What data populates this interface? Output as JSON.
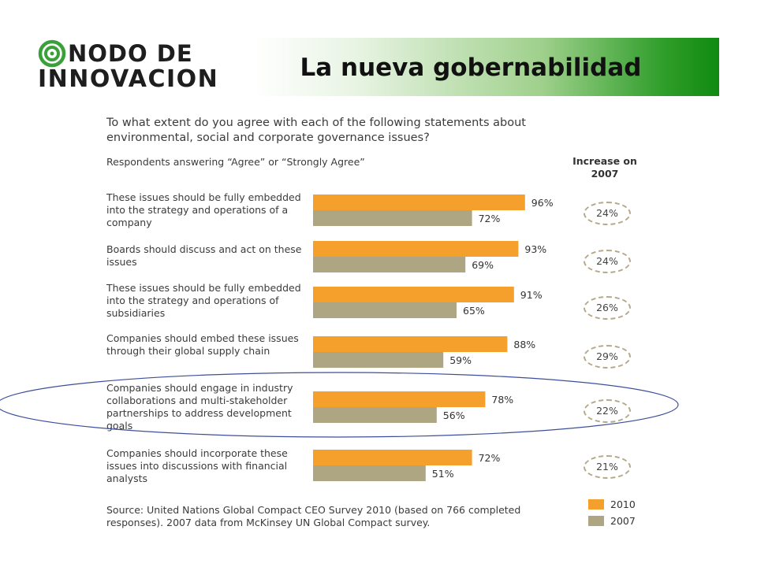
{
  "logo": {
    "line1": "NODO DE",
    "line2": "INNOVACION"
  },
  "header": {
    "title": "La nueva gobernabilidad"
  },
  "colors": {
    "series_2010": "#f5a02d",
    "series_2007": "#aea583",
    "highlight": "#3d4f9a"
  },
  "chart_data": {
    "type": "bar",
    "orientation": "horizontal",
    "title": "To what extent do you agree with each of the following statements about environmental, social and corporate governance issues?",
    "subtitle": "Respondents answering “Agree” or “Strongly Agree”",
    "increase_header": "Increase on 2007",
    "categories": [
      "These issues should be fully embedded into the strategy and operations of a company",
      "Boards should discuss and act on these issues",
      "These issues should be fully embedded into the strategy and operations of subsidiaries",
      "Companies should embed these issues through their global supply chain",
      "Companies should engage in industry collaborations and multi-stakeholder partnerships to address development goals",
      "Companies should incorporate these issues into discussions with financial analysts"
    ],
    "series": [
      {
        "name": "2010",
        "values": [
          96,
          93,
          91,
          88,
          78,
          72
        ]
      },
      {
        "name": "2007",
        "values": [
          72,
          69,
          65,
          59,
          56,
          51
        ]
      }
    ],
    "value_labels_2010": [
      "96%",
      "93%",
      "91%",
      "88%",
      "78%",
      "72%"
    ],
    "value_labels_2007": [
      "72%",
      "69%",
      "65%",
      "59%",
      "56%",
      "51%"
    ],
    "increase": [
      "24%",
      "24%",
      "26%",
      "29%",
      "22%",
      "21%"
    ],
    "highlighted_category_index": 4,
    "legend": [
      "2010",
      "2007"
    ],
    "source": "Source: United Nations Global Compact CEO Survey 2010 (based on 766 completed responses). 2007 data from McKinsey UN Global Compact survey."
  }
}
